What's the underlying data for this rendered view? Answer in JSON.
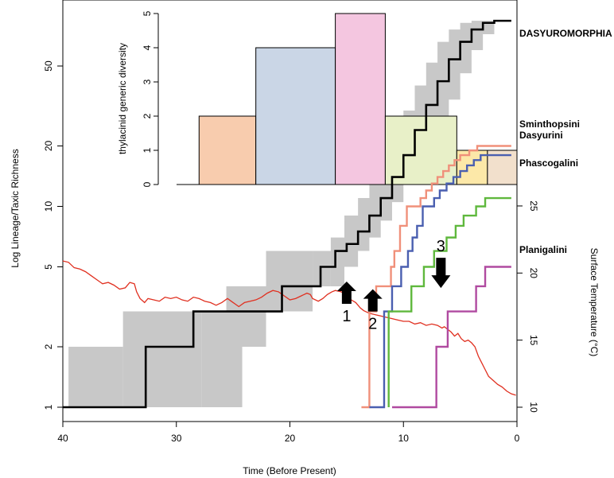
{
  "chart_data": [
    {
      "type": "line",
      "x": {
        "label": "Time (Before Present)",
        "range": [
          40,
          0
        ],
        "reversed": true,
        "ticks": [
          40,
          30,
          20,
          10,
          0
        ]
      },
      "y_left": {
        "label": "Log Lineage/Taxic Richness",
        "scale": "log",
        "range": [
          1,
          100
        ],
        "ticks": [
          1,
          2,
          5,
          10,
          20,
          50
        ]
      },
      "y_right": {
        "label": "Surface Temperature (°C)",
        "range": [
          10,
          32.5
        ],
        "ticks": [
          10,
          15,
          20,
          25
        ]
      },
      "grid": false,
      "series": [
        {
          "name": "DASYUROMORPHIA",
          "color": "#000000",
          "band_color": "#c8c8c8",
          "steps": [
            [
              40,
              1
            ],
            [
              32.7,
              1
            ],
            [
              32.7,
              2
            ],
            [
              28.5,
              2
            ],
            [
              28.5,
              3
            ],
            [
              20.7,
              3
            ],
            [
              20.7,
              4
            ],
            [
              17.3,
              4
            ],
            [
              17.3,
              5
            ],
            [
              16.0,
              5
            ],
            [
              16.0,
              6
            ],
            [
              15,
              6.5
            ],
            [
              14,
              7.5
            ],
            [
              13,
              9
            ],
            [
              12,
              11
            ],
            [
              11,
              14
            ],
            [
              10,
              18
            ],
            [
              9,
              24
            ],
            [
              8,
              32
            ],
            [
              7,
              42
            ],
            [
              6,
              54
            ],
            [
              5,
              66
            ],
            [
              4,
              76
            ],
            [
              3,
              82
            ],
            [
              2,
              84
            ],
            [
              0.5,
              84
            ]
          ],
          "band_steps": [
            [
              39.5,
              2,
              1
            ],
            [
              34.7,
              2,
              1
            ],
            [
              34.7,
              3,
              1
            ],
            [
              27.8,
              3,
              1
            ],
            [
              27.8,
              3,
              2
            ],
            [
              24.2,
              3,
              2
            ],
            [
              24.2,
              4,
              2
            ],
            [
              25.6,
              4,
              2
            ],
            [
              25.6,
              5,
              3
            ],
            [
              22.1,
              5,
              3
            ],
            [
              22.1,
              6,
              3
            ],
            [
              20.0,
              6,
              3
            ],
            [
              20.0,
              6,
              4
            ],
            [
              18.0,
              6,
              4
            ],
            [
              18.0,
              6,
              4
            ],
            [
              16.4,
              7,
              4
            ],
            [
              15.2,
              9,
              5
            ],
            [
              14,
              11,
              6
            ],
            [
              13,
              14,
              7
            ],
            [
              12,
              18,
              8.5
            ],
            [
              11,
              23,
              10.5
            ],
            [
              10,
              30,
              13
            ],
            [
              9,
              40,
              16
            ],
            [
              8,
              52,
              20
            ],
            [
              7,
              66,
              26
            ],
            [
              6,
              76,
              34
            ],
            [
              5,
              82,
              46
            ],
            [
              4,
              84,
              60
            ],
            [
              3,
              84,
              72
            ],
            [
              2,
              84,
              80
            ]
          ]
        },
        {
          "name": "Sminthopsini",
          "color": "#f0907a",
          "steps": [
            [
              13.7,
              1
            ],
            [
              13.0,
              1
            ],
            [
              13.0,
              3
            ],
            [
              12.4,
              3
            ],
            [
              12.4,
              4
            ],
            [
              11.1,
              4
            ],
            [
              11.1,
              5
            ],
            [
              10.8,
              5
            ],
            [
              10.8,
              6
            ],
            [
              10.3,
              6
            ],
            [
              10.3,
              8
            ],
            [
              9.7,
              8
            ],
            [
              9.7,
              10
            ],
            [
              9.0,
              10
            ],
            [
              8.5,
              11
            ],
            [
              8.0,
              12
            ],
            [
              7.5,
              13
            ],
            [
              7.0,
              14
            ],
            [
              6.5,
              15
            ],
            [
              6.0,
              16
            ],
            [
              5.5,
              17
            ],
            [
              5.0,
              18
            ],
            [
              4.2,
              19
            ],
            [
              3.5,
              20
            ],
            [
              0.5,
              20
            ]
          ]
        },
        {
          "name": "Dasyurini",
          "color": "#4a5fb0",
          "steps": [
            [
              13.0,
              1
            ],
            [
              11.7,
              1
            ],
            [
              11.7,
              3
            ],
            [
              11.0,
              3
            ],
            [
              11.0,
              4
            ],
            [
              10.2,
              4
            ],
            [
              10.2,
              5
            ],
            [
              9.6,
              5
            ],
            [
              9.6,
              6
            ],
            [
              9.2,
              6
            ],
            [
              9.2,
              7
            ],
            [
              8.8,
              7
            ],
            [
              8.8,
              8
            ],
            [
              8.3,
              8
            ],
            [
              8.3,
              10
            ],
            [
              7.8,
              10
            ],
            [
              7.3,
              11
            ],
            [
              6.8,
              12
            ],
            [
              6.2,
              13
            ],
            [
              5.6,
              14
            ],
            [
              5.0,
              15
            ],
            [
              4.4,
              16
            ],
            [
              3.8,
              17
            ],
            [
              3.2,
              18
            ],
            [
              0.5,
              18
            ]
          ]
        },
        {
          "name": "Phascogalini",
          "color": "#5fb83d",
          "steps": [
            [
              11.3,
              1
            ],
            [
              11.3,
              3
            ],
            [
              9.3,
              3
            ],
            [
              9.3,
              4
            ],
            [
              8.2,
              4
            ],
            [
              8.2,
              5
            ],
            [
              7.3,
              5
            ],
            [
              7.3,
              6
            ],
            [
              6.2,
              6
            ],
            [
              6.2,
              7
            ],
            [
              5.4,
              7
            ],
            [
              5.4,
              8
            ],
            [
              4.7,
              8
            ],
            [
              4.7,
              9
            ],
            [
              3.6,
              9
            ],
            [
              3.6,
              10
            ],
            [
              2.8,
              10
            ],
            [
              2.8,
              11
            ],
            [
              0.5,
              11
            ]
          ]
        },
        {
          "name": "Planigalini",
          "color": "#b04aa0",
          "steps": [
            [
              11.0,
              1
            ],
            [
              7.1,
              1
            ],
            [
              7.1,
              2
            ],
            [
              6.1,
              2
            ],
            [
              6.1,
              3
            ],
            [
              3.6,
              3
            ],
            [
              3.6,
              4
            ],
            [
              2.8,
              4
            ],
            [
              2.8,
              5
            ],
            [
              0.5,
              5
            ]
          ]
        }
      ],
      "temperature": {
        "name": "Surface Temperature (°C)",
        "color": "#e03020",
        "points": [
          [
            40,
            20.9
          ],
          [
            39.5,
            20.8
          ],
          [
            39,
            20.4
          ],
          [
            38.5,
            20.3
          ],
          [
            38,
            20.1
          ],
          [
            37.5,
            19.8
          ],
          [
            37,
            19.5
          ],
          [
            36.5,
            19.2
          ],
          [
            36,
            19.3
          ],
          [
            35.5,
            19.1
          ],
          [
            35,
            18.8
          ],
          [
            34.5,
            18.9
          ],
          [
            34.1,
            19.3
          ],
          [
            33.7,
            19.2
          ],
          [
            33.5,
            18.6
          ],
          [
            33.2,
            18.1
          ],
          [
            32.8,
            17.8
          ],
          [
            32.5,
            18.1
          ],
          [
            32,
            18.0
          ],
          [
            31.5,
            17.9
          ],
          [
            31,
            18.2
          ],
          [
            30.5,
            18.1
          ],
          [
            30,
            18.2
          ],
          [
            29.5,
            18.0
          ],
          [
            29,
            17.9
          ],
          [
            28.5,
            18.2
          ],
          [
            28,
            18.1
          ],
          [
            27.5,
            17.9
          ],
          [
            27,
            17.8
          ],
          [
            26.5,
            17.6
          ],
          [
            26,
            17.8
          ],
          [
            25.5,
            18.1
          ],
          [
            25,
            17.8
          ],
          [
            24.5,
            17.5
          ],
          [
            24,
            17.8
          ],
          [
            23.5,
            17.9
          ],
          [
            23,
            18.0
          ],
          [
            22.5,
            18.2
          ],
          [
            22,
            18.5
          ],
          [
            21.5,
            18.7
          ],
          [
            21,
            18.6
          ],
          [
            20.5,
            18.3
          ],
          [
            20,
            18.0
          ],
          [
            19.5,
            18.1
          ],
          [
            19,
            18.3
          ],
          [
            18.5,
            18.5
          ],
          [
            18.2,
            18.4
          ],
          [
            18,
            18.1
          ],
          [
            17.5,
            17.9
          ],
          [
            17.1,
            18.1
          ],
          [
            16.7,
            18.4
          ],
          [
            16.3,
            18.6
          ],
          [
            16,
            18.7
          ],
          [
            15.5,
            18.6
          ],
          [
            15.0,
            18.4
          ],
          [
            14.6,
            18.0
          ],
          [
            14.2,
            17.8
          ],
          [
            13.8,
            17.4
          ],
          [
            13.5,
            17.2
          ],
          [
            13,
            17.0
          ],
          [
            12.5,
            16.9
          ],
          [
            12,
            16.8
          ],
          [
            11.5,
            16.7
          ],
          [
            11,
            16.6
          ],
          [
            10.5,
            16.5
          ],
          [
            10,
            16.4
          ],
          [
            9.5,
            16.4
          ],
          [
            9,
            16.2
          ],
          [
            8.5,
            16.3
          ],
          [
            8,
            16.1
          ],
          [
            7.5,
            16.2
          ],
          [
            7,
            16.1
          ],
          [
            6.6,
            15.9
          ],
          [
            6.4,
            16.0
          ],
          [
            6.1,
            15.8
          ],
          [
            5.8,
            15.6
          ],
          [
            5.5,
            15.3
          ],
          [
            5.2,
            15.5
          ],
          [
            4.9,
            15.1
          ],
          [
            4.6,
            14.9
          ],
          [
            4.3,
            15.0
          ],
          [
            4.0,
            14.8
          ],
          [
            3.7,
            14.5
          ],
          [
            3.4,
            13.8
          ],
          [
            3.1,
            13.3
          ],
          [
            2.8,
            12.8
          ],
          [
            2.5,
            12.3
          ],
          [
            2.1,
            12.0
          ],
          [
            1.7,
            11.7
          ],
          [
            1.3,
            11.5
          ],
          [
            0.9,
            11.2
          ],
          [
            0.5,
            11.0
          ],
          [
            0.1,
            10.9
          ]
        ]
      },
      "arrows": [
        {
          "label": "1",
          "x": 15.0,
          "y": 4.15,
          "direction": "up"
        },
        {
          "label": "2",
          "x": 12.7,
          "y": 3.8,
          "direction": "up"
        },
        {
          "label": "3",
          "x": 6.7,
          "y": 5.55,
          "direction": "down"
        }
      ],
      "labels": [
        {
          "text": "DASYUROMORPHIA",
          "series": "DASYUROMORPHIA"
        },
        {
          "text": "Sminthopsini",
          "series": "Sminthopsini"
        },
        {
          "text": "Dasyurini",
          "series": "Dasyurini"
        },
        {
          "text": "Phascogalini",
          "series": "Phascogalini"
        },
        {
          "text": "Planigalini",
          "series": "Planigalini"
        }
      ]
    },
    {
      "type": "bar",
      "ylabel": "thylacinid generic diversity",
      "ylim": [
        0,
        5
      ],
      "yticks": [
        0,
        1,
        2,
        3,
        4,
        5
      ],
      "bars": [
        {
          "x0": 28.0,
          "x1": 23.0,
          "value": 2,
          "color": "#f8ccae"
        },
        {
          "x0": 23.0,
          "x1": 16.0,
          "value": 4,
          "color": "#cad6e6"
        },
        {
          "x0": 16.0,
          "x1": 11.6,
          "value": 5,
          "color": "#f4c6e0"
        },
        {
          "x0": 11.6,
          "x1": 5.3,
          "value": 2,
          "color": "#e8f0c8"
        },
        {
          "x0": 5.3,
          "x1": 2.6,
          "value": 1,
          "color": "#fce8a8"
        },
        {
          "x0": 2.6,
          "x1": 0.0,
          "value": 1,
          "color": "#f2e0cc"
        }
      ]
    }
  ]
}
